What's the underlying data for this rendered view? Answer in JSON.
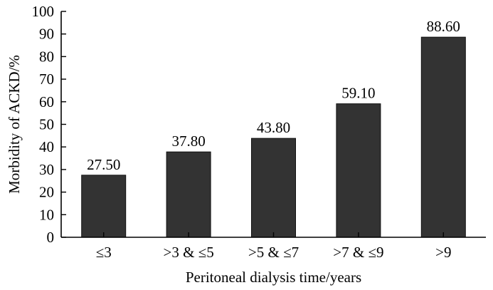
{
  "chart_data": {
    "type": "bar",
    "categories": [
      "≤3",
      ">3 & ≤5",
      ">5 & ≤7",
      ">7 & ≤9",
      ">9"
    ],
    "values": [
      27.5,
      37.8,
      43.8,
      59.1,
      88.6
    ],
    "value_labels": [
      "27.50",
      "37.80",
      "43.80",
      "59.10",
      "88.60"
    ],
    "xlabel": "Peritoneal dialysis time/years",
    "ylabel": "Morbidity of ACKD/%",
    "ylim": [
      0,
      100
    ],
    "yticks": [
      0,
      10,
      20,
      30,
      40,
      50,
      60,
      70,
      80,
      90,
      100
    ],
    "grid": false,
    "legend": "none",
    "bar_color": "#333333"
  }
}
